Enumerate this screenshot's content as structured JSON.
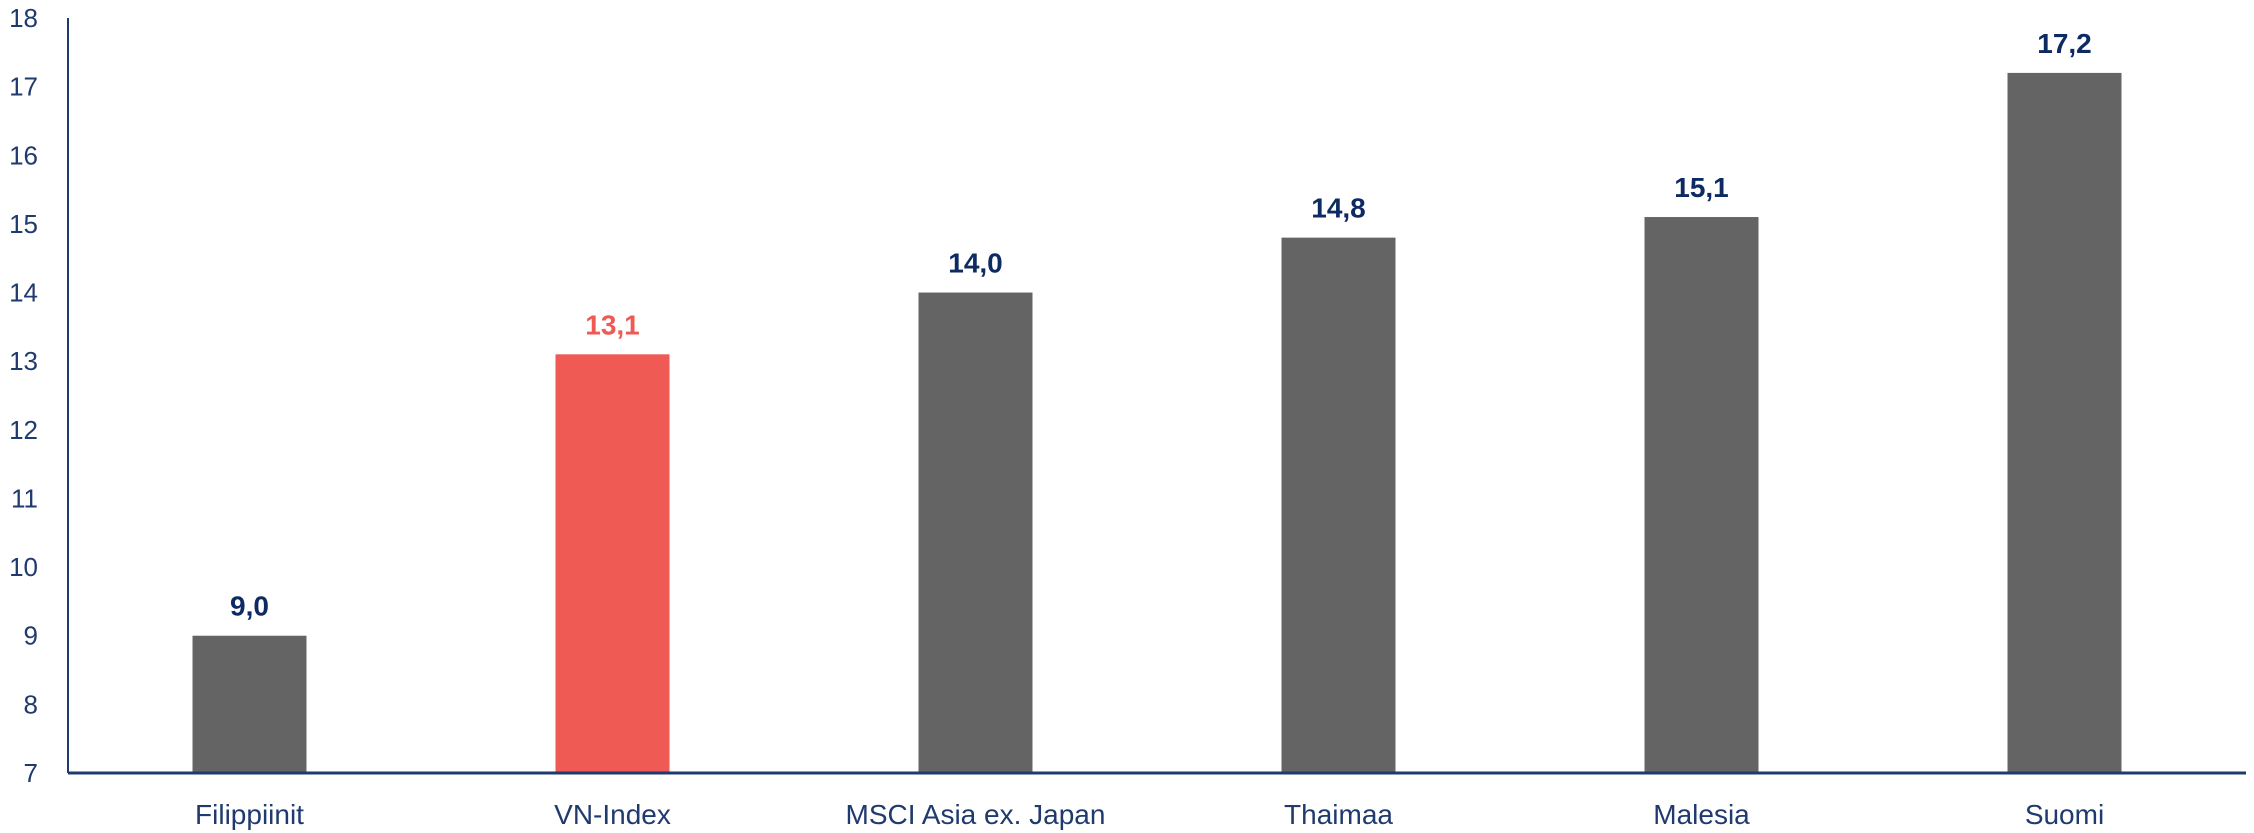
{
  "chart_data": {
    "type": "bar",
    "title": "",
    "xlabel": "",
    "ylabel": "",
    "categories": [
      "Filippiinit",
      "VN-Index",
      "MSCI Asia ex. Japan",
      "Thaimaa",
      "Malesia",
      "Suomi"
    ],
    "values": [
      9.0,
      13.1,
      14.0,
      14.8,
      15.1,
      17.2
    ],
    "value_labels": [
      "9,0",
      "13,1",
      "14,0",
      "14,8",
      "15,1",
      "17,2"
    ],
    "highlight_category": "VN-Index",
    "ylim": [
      7,
      18
    ],
    "yticks": [
      7,
      8,
      9,
      10,
      11,
      12,
      13,
      14,
      15,
      16,
      17,
      18
    ],
    "grid": false,
    "legend": "none",
    "colors": {
      "bar": "#646464",
      "highlight_bar": "#ef5a55",
      "highlight_label": "#ef5a55",
      "label": "#0d2a63",
      "axis": "#1f3a6e"
    }
  }
}
